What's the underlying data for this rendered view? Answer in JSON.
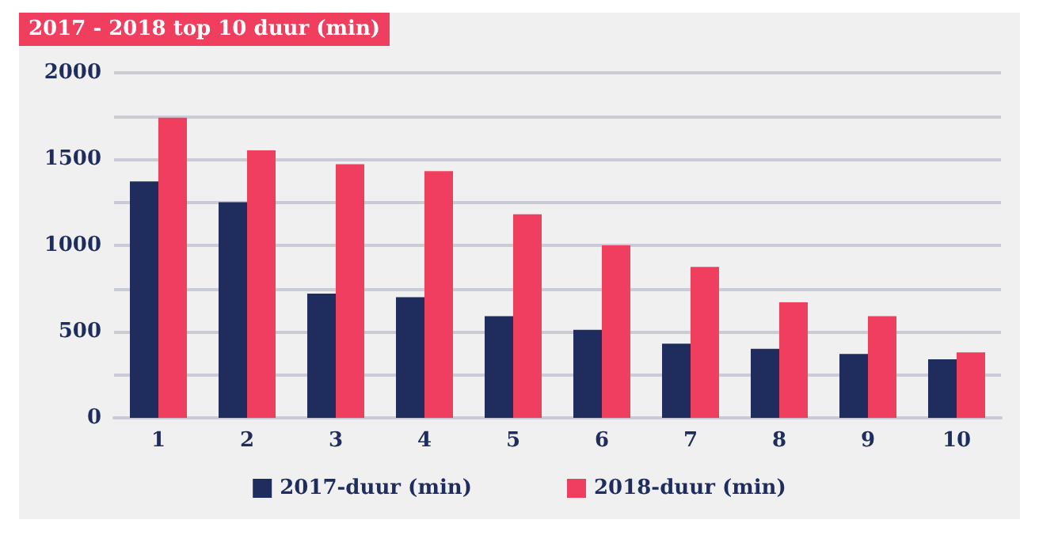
{
  "chart_data": {
    "type": "bar",
    "title": "2017 - 2018 top 10 duur (min)",
    "categories": [
      "1",
      "2",
      "3",
      "4",
      "5",
      "6",
      "7",
      "8",
      "9",
      "10"
    ],
    "series": [
      {
        "name": "2017-duur (min)",
        "color": "#1f2d5e",
        "values": [
          1370,
          1250,
          720,
          700,
          590,
          510,
          430,
          400,
          370,
          340
        ]
      },
      {
        "name": "2018-duur (min)",
        "color": "#f03e5f",
        "values": [
          1740,
          1550,
          1470,
          1430,
          1180,
          1000,
          875,
          670,
          590,
          380
        ]
      }
    ],
    "ylim": [
      0,
      2000
    ],
    "yticks": [
      0,
      {
        "value": 250,
        "label": null
      },
      500,
      {
        "value": 750,
        "label": null
      },
      1000,
      {
        "value": 1250,
        "label": null
      },
      1500,
      {
        "value": 1750,
        "label": null
      },
      2000
    ],
    "grid": "y",
    "legend": "bottom"
  }
}
